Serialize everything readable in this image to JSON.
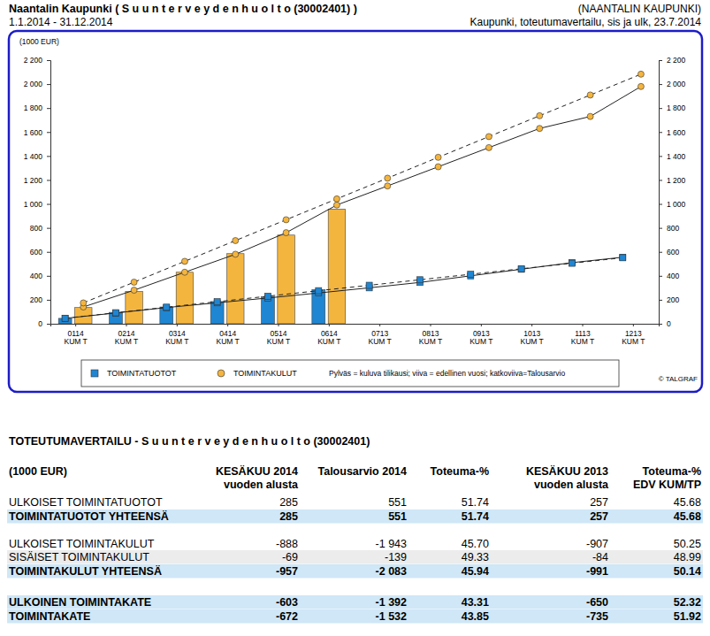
{
  "header": {
    "left_title": "Naantalin Kaupunki ( S u u n t e r v e y d e n h u o l t o (30002401) )",
    "left_sub": "1.1.2014 - 31.12.2014",
    "right_title": "(NAANTALIN KAUPUNKI)",
    "right_sub": "Kaupunki, toteutumavertailu, sis ja ulk, 23.7.2014"
  },
  "chart_data": {
    "type": "bar",
    "ylabel": "(1000 EUR)",
    "categories": [
      "0114 KUM T",
      "0214 KUM T",
      "0314 KUM T",
      "0414 KUM T",
      "0514 KUM T",
      "0614 KUM T",
      "0713 KUM T",
      "0813 KUM T",
      "0913 KUM T",
      "1013 KUM T",
      "1113 KUM T",
      "1213 KUM T"
    ],
    "series": [
      {
        "name": "TOIMINTATUOTOT",
        "type": "bar",
        "color": "#1f86d3",
        "values": [
          45,
          95,
          140,
          185,
          225,
          285,
          null,
          null,
          null,
          null,
          null,
          null
        ]
      },
      {
        "name": "TOIMINTAKULUT",
        "type": "bar",
        "color": "#f4b53f",
        "values": [
          135,
          270,
          430,
          585,
          740,
          957,
          null,
          null,
          null,
          null,
          null,
          null
        ]
      },
      {
        "name": "TOIMINTATUOTOT",
        "type": "line",
        "line_style": "solid",
        "marker": "square",
        "color": "#1f86d3",
        "values": [
          45,
          90,
          135,
          175,
          215,
          257,
          300,
          345,
          400,
          455,
          510,
          555
        ]
      },
      {
        "name": "TOIMINTATUOTOT",
        "type": "line",
        "line_style": "dashed",
        "marker": "square",
        "color": "#1f86d3",
        "values": [
          46,
          92,
          138,
          184,
          230,
          276,
          321,
          367,
          413,
          459,
          505,
          551
        ]
      },
      {
        "name": "TOIMINTAKULUT",
        "type": "line",
        "line_style": "solid",
        "marker": "circle",
        "color": "#f4b53f",
        "values": [
          140,
          280,
          430,
          580,
          760,
          991,
          1150,
          1310,
          1470,
          1630,
          1730,
          1980
        ]
      },
      {
        "name": "TOIMINTAKULUT",
        "type": "line",
        "line_style": "dashed",
        "marker": "circle",
        "color": "#f4b53f",
        "values": [
          174,
          347,
          521,
          694,
          868,
          1042,
          1215,
          1389,
          1562,
          1736,
          1909,
          2083
        ]
      }
    ],
    "ylim": [
      0,
      2200
    ],
    "yticks": [
      0,
      200,
      400,
      600,
      800,
      {
        "value": 1000,
        "label": "1 000"
      },
      {
        "value": 1200,
        "label": "1 200"
      },
      {
        "value": 1400,
        "label": "1 400"
      },
      {
        "value": 1600,
        "label": "1 600"
      },
      {
        "value": 1800,
        "label": "1 800"
      },
      {
        "value": 2000,
        "label": "2 000"
      },
      {
        "value": 2200,
        "label": "2 200"
      }
    ],
    "y2lim": [
      0,
      2200
    ],
    "y2ticks": [
      0,
      200,
      400,
      600,
      800,
      {
        "value": 1000,
        "label": "1 000"
      },
      {
        "value": 1200,
        "label": "1 200"
      },
      {
        "value": 1400,
        "label": "1 400"
      },
      {
        "value": 1600,
        "label": "1 600"
      },
      {
        "value": 1800,
        "label": "1 800"
      },
      {
        "value": 2000,
        "label": "2 000"
      },
      {
        "value": 2200,
        "label": "2 200"
      }
    ],
    "grid": false,
    "legend": "bottom",
    "annotations": [
      "Pylväs = kuluva tilikausi; viiva = edellinen vuosi; katkoviiva=Talousarvio",
      "© TALGRAF"
    ]
  },
  "table": {
    "title": "TOTEUTUMAVERTAILU - S u u n t e r v e y d e n h u o l t o (30002401)",
    "header": [
      [
        "(1000 EUR)"
      ],
      [
        "KESÄKUU 2014",
        "vuoden alusta"
      ],
      [
        "Talousarvio 2014"
      ],
      [
        "Toteuma-%"
      ],
      [
        "KESÄKUU 2013",
        "vuoden alusta"
      ],
      [
        "Toteuma-%",
        "EDV KUM/TP"
      ]
    ],
    "groups": [
      [
        {
          "label": "ULKOISET TOIMINTATUOTOT",
          "cells": [
            "285",
            "551",
            "51.74",
            "257",
            "45.68"
          ]
        },
        {
          "label": "TOIMINTATUOTOT YHTEENSÄ",
          "cells": [
            "285",
            "551",
            "51.74",
            "257",
            "45.68"
          ]
        }
      ],
      [
        {
          "label": "ULKOISET TOIMINTAKULUT",
          "cells": [
            "-888",
            "-1 943",
            "45.70",
            "-907",
            "50.25"
          ]
        },
        {
          "label": "SISÄISET TOIMINTAKULUT",
          "cells": [
            "-69",
            "-139",
            "49.33",
            "-84",
            "48.99"
          ]
        },
        {
          "label": "TOIMINTAKULUT YHTEENSÄ",
          "cells": [
            "-957",
            "-2 083",
            "45.94",
            "-991",
            "50.14"
          ]
        }
      ],
      [
        {
          "label": "ULKOINEN TOIMINTAKATE",
          "cells": [
            "-603",
            "-1 392",
            "43.31",
            "-650",
            "52.32"
          ]
        },
        {
          "label": "TOIMINTAKATE",
          "cells": [
            "-672",
            "-1 532",
            "43.85",
            "-735",
            "51.92"
          ]
        }
      ]
    ]
  }
}
